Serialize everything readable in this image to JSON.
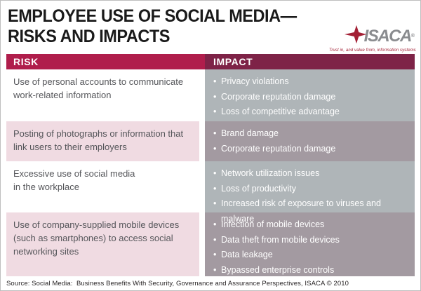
{
  "title": {
    "line1": "EMPLOYEE USE OF SOCIAL MEDIA—",
    "line2": "RISKS AND IMPACTS"
  },
  "logo": {
    "name": "ISACA",
    "registered": "®",
    "tagline": "Trust in, and value from, information systems"
  },
  "table": {
    "headers": {
      "risk": "RISK",
      "impact": "IMPACT"
    },
    "rows": [
      {
        "risk_lines": [
          "Use of personal accounts to communicate",
          "work-related information"
        ],
        "impacts": [
          "Privacy violations",
          "Corporate reputation damage",
          "Loss of competitive advantage"
        ]
      },
      {
        "risk_lines": [
          "Posting of photographs or information that",
          "link users to their employers"
        ],
        "impacts": [
          "Brand damage",
          "Corporate reputation damage"
        ]
      },
      {
        "risk_lines": [
          "Excessive use of social media",
          "in the workplace"
        ],
        "impacts": [
          "Network utilization issues",
          "Loss of productivity",
          "Increased risk of exposure to viruses and malware"
        ]
      },
      {
        "risk_lines": [
          "Use of company-supplied mobile devices",
          "(such as smartphones) to access social",
          "networking sites"
        ],
        "impacts": [
          "Infection of mobile devices",
          "Data theft from mobile devices",
          "Data leakage",
          "Bypassed enterprise controls"
        ]
      }
    ]
  },
  "footer": {
    "source": "Source: Social Media:  Business Benefits With Security, Governance and Assurance Perspectives, ISACA © 2010"
  },
  "colors": {
    "risk_header": "#b01e4c",
    "impact_header": "#7e2347",
    "impact_cell_a": "#afb5b8",
    "impact_cell_b": "#a39aa1",
    "risk_cell_b": "#f0dbe2",
    "risk_text": "#55565a",
    "impact_text": "#ffffff",
    "title": "#1a1a1a",
    "logo_gray": "#8a8c8f",
    "logo_red": "#a32035",
    "footer": "#231f20",
    "page_border": "#bebebe"
  }
}
